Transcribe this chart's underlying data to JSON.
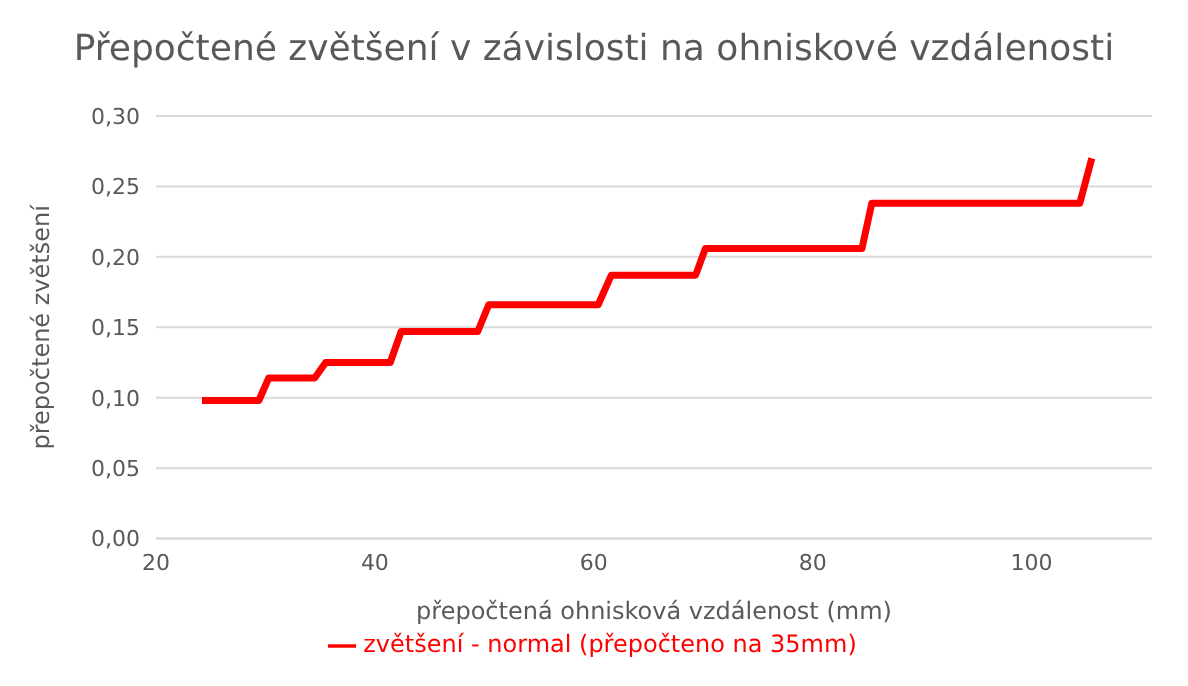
{
  "chart_data": {
    "type": "line",
    "title": "Přepočtené zvětšení v závislosti na ohniskové vzdálenosti",
    "xlabel": "přepočtená ohnisková vzdálenost (mm)",
    "ylabel": "přepočtené  zvětšení",
    "x": [
      24.2,
      29.4,
      30.3,
      34.5,
      35.5,
      41.4,
      42.4,
      49.4,
      50.4,
      60.4,
      61.6,
      69.3,
      70.2,
      84.5,
      85.4,
      104.4,
      105.5
    ],
    "series": [
      {
        "name": "zvětšení - normal (přepočteno na 35mm)",
        "color": "#ff0000",
        "values": [
          0.098,
          0.098,
          0.114,
          0.114,
          0.125,
          0.125,
          0.147,
          0.147,
          0.166,
          0.166,
          0.187,
          0.187,
          0.206,
          0.206,
          0.238,
          0.238,
          0.27
        ]
      }
    ],
    "xlim": [
      20,
      111
    ],
    "xticks": [
      20,
      40,
      60,
      80,
      100
    ],
    "ylim": [
      0,
      0.3
    ],
    "yticks": [
      {
        "value": 0,
        "label": "0,00"
      },
      {
        "value": 0.05,
        "label": "0,05"
      },
      {
        "value": 0.1,
        "label": "0,10"
      },
      {
        "value": 0.15,
        "label": "0,15"
      },
      {
        "value": 0.2,
        "label": "0,20"
      },
      {
        "value": 0.25,
        "label": "0,25"
      },
      {
        "value": 0.3,
        "label": "0,30"
      }
    ],
    "grid": "y",
    "legend": "bottom",
    "marker": "none",
    "line_style": "solid"
  }
}
